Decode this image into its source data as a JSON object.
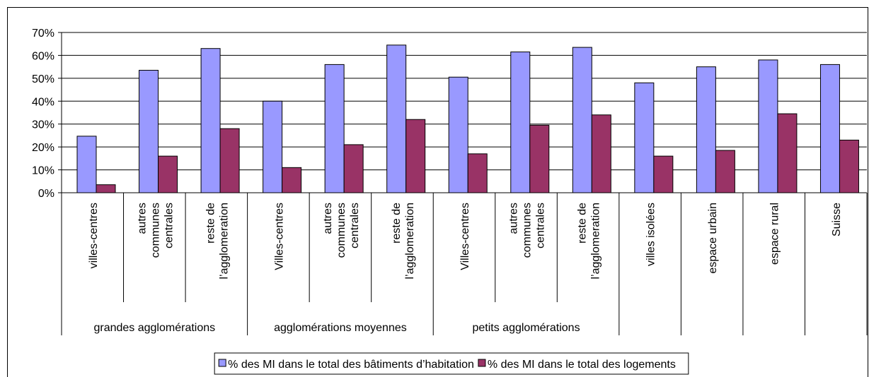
{
  "chart_data": {
    "type": "bar",
    "categories": [
      "villes-centres",
      "autres\ncommunes\ncentrales",
      "reste de\nl’agglomeration",
      "Villes-centres",
      "autres\ncommunes\ncentrales",
      "reste de\nl’agglomeration",
      "Villes-centres",
      "autres\ncommunes\ncentrales",
      "reste de\nl’agglomeration",
      "villes isolées",
      "espace urbain",
      "espace rural",
      "Suisse"
    ],
    "groups": [
      "grandes agglomérations",
      "grandes agglomérations",
      "grandes agglomérations",
      "agglomérations moyennes",
      "agglomérations moyennes",
      "agglomérations moyennes",
      "petits agglomérations",
      "petits agglomérations",
      "petits agglomérations",
      null,
      null,
      null,
      null
    ],
    "series": [
      {
        "name": "% des MI dans le total des bâtiments d’habitation",
        "color": "#9999ff",
        "values": [
          24.7,
          53.5,
          63,
          40,
          56,
          64.5,
          50.5,
          61.5,
          63.5,
          48,
          55,
          58,
          56
        ]
      },
      {
        "name": "% des MI dans le total des logements",
        "color": "#993366",
        "values": [
          3.5,
          16,
          28,
          11,
          21,
          32,
          17,
          29.5,
          34,
          16,
          18.5,
          34.5,
          23
        ]
      }
    ],
    "ylim": [
      0,
      70
    ],
    "yticks": [
      {
        "value": 0,
        "label": "0%"
      },
      {
        "value": 10,
        "label": "10%"
      },
      {
        "value": 20,
        "label": "20%"
      },
      {
        "value": 30,
        "label": "30%"
      },
      {
        "value": 40,
        "label": "40%"
      },
      {
        "value": 50,
        "label": "50%"
      },
      {
        "value": 60,
        "label": "60%"
      },
      {
        "value": 70,
        "label": "70%"
      }
    ],
    "grid": true,
    "legend": "bottom"
  }
}
